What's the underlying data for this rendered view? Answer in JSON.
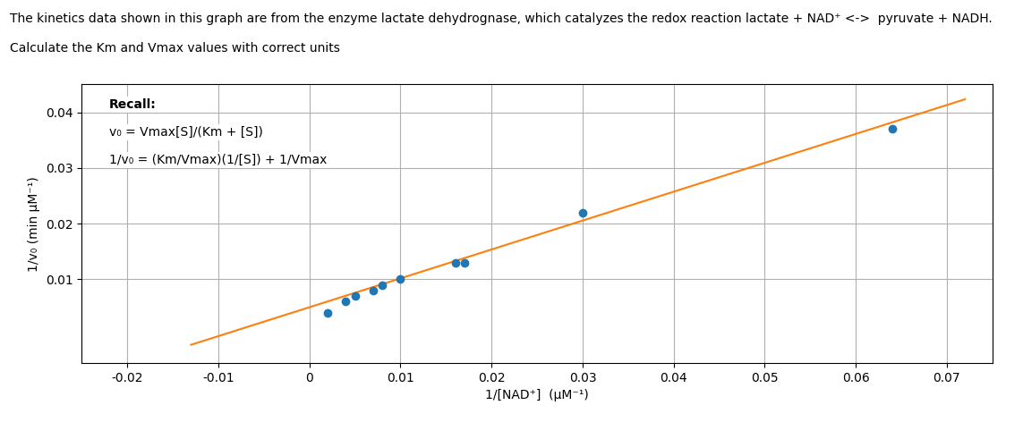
{
  "chart_data": {
    "type": "scatter",
    "title": "The kinetics data shown in this graph are from the enzyme lactate dehydrognase, which catalyzes the redox reaction lactate + NAD⁺ <->  pyruvate + NADH.",
    "subtitle": "Calculate the Km and Vmax values with correct units",
    "x_label": "1/[NAD⁺]  (μM⁻¹)",
    "y_label": "1/v₀ (min μM⁻¹)",
    "annotations": [
      "Recall:",
      "v₀ = Vmax[S]/(Km + [S])",
      "1/v₀ = (Km/Vmax)(1/[S]) + 1/Vmax"
    ],
    "series": [
      {
        "type": "scatter",
        "marker": "o",
        "x": [
          0.002,
          0.004,
          0.005,
          0.007,
          0.008,
          0.01,
          0.016,
          0.017,
          0.03,
          0.064
        ],
        "values": [
          0.004,
          0.006,
          0.007,
          0.008,
          0.009,
          0.01,
          0.013,
          0.013,
          0.022,
          0.037
        ]
      },
      {
        "type": "line",
        "line_style": "solid",
        "x": [
          -0.013,
          0.072
        ],
        "values": [
          -0.0017405,
          0.042332
        ]
      }
    ],
    "xlim": [
      -0.025,
      0.075
    ],
    "ylim": [
      -0.005,
      0.045
    ],
    "xticks": [
      -0.02,
      -0.01,
      0,
      0.01,
      0.02,
      0.03,
      0.04,
      0.05,
      0.06,
      0.07
    ],
    "yticks": [
      0.01,
      0.02,
      0.03,
      0.04
    ],
    "grid": true
  }
}
